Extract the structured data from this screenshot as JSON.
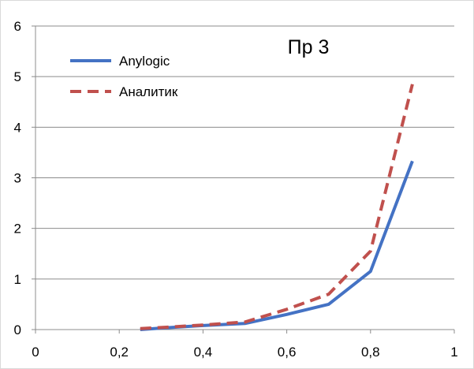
{
  "chart_data": {
    "type": "scatter",
    "title": "Пр 3",
    "xlabel": "",
    "ylabel": "",
    "xlim": [
      0,
      1
    ],
    "ylim": [
      0,
      6
    ],
    "x_ticks": [
      "0",
      "0,2",
      "0,4",
      "0,6",
      "0,8",
      "1"
    ],
    "x_tick_values": [
      0,
      0.2,
      0.4,
      0.6,
      0.8,
      1
    ],
    "y_ticks": [
      "0",
      "1",
      "2",
      "3",
      "4",
      "5",
      "6"
    ],
    "y_tick_values": [
      0,
      1,
      2,
      3,
      4,
      5,
      6
    ],
    "grid": "horizontal",
    "legend_position": "top-left",
    "series": [
      {
        "name": "Anylogic",
        "style": "solid",
        "color": "#4472C4",
        "x": [
          0.25,
          0.3,
          0.4,
          0.5,
          0.6,
          0.7,
          0.8,
          0.9
        ],
        "y": [
          0.0,
          0.03,
          0.08,
          0.12,
          0.3,
          0.5,
          1.15,
          3.33
        ]
      },
      {
        "name": "Аналитик",
        "style": "dashed",
        "color": "#C0504D",
        "x": [
          0.25,
          0.3,
          0.4,
          0.5,
          0.6,
          0.7,
          0.8,
          0.9
        ],
        "y": [
          0.02,
          0.04,
          0.09,
          0.15,
          0.4,
          0.7,
          1.55,
          4.85
        ]
      }
    ]
  }
}
